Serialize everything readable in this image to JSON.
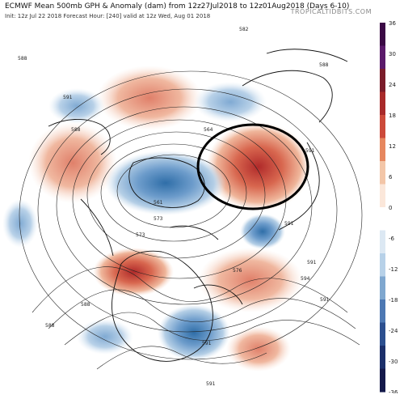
{
  "header": {
    "title": "ECMWF Mean 500mb GPH & Anomaly (dam) from 12z27Jul2018 to 12z01Aug2018 (Days 6-10)",
    "subtitle": "Init: 12z Jul 22 2018   Forecast Hour: [240]   valid at 12z Wed, Aug 01 2018",
    "brand": "TROPICALTIDBITS.COM"
  },
  "colorbar": {
    "labels": [
      "36",
      "30",
      "24",
      "18",
      "12",
      "6",
      "0",
      "-6",
      "-12",
      "-18",
      "-24",
      "-30",
      "-36"
    ],
    "colors": [
      "#3b0a45",
      "#5a1a6a",
      "#7a1c2a",
      "#a82a2a",
      "#cc4a3a",
      "#e6875f",
      "#f3c6a8",
      "#fbe7da",
      "#ffffff",
      "#dce8f3",
      "#b7d1e8",
      "#7fa7cf",
      "#4d78b3",
      "#2c4f8f",
      "#1b2f6a",
      "#14194a"
    ]
  },
  "contour_labels": [
    "582",
    "588",
    "588",
    "588",
    "564",
    "561",
    "573",
    "573",
    "576",
    "591",
    "594",
    "591",
    "588",
    "591",
    "591",
    "588",
    "591",
    "591",
    "591"
  ],
  "annotation": {
    "shape": "ellipse",
    "color": "#000000"
  }
}
